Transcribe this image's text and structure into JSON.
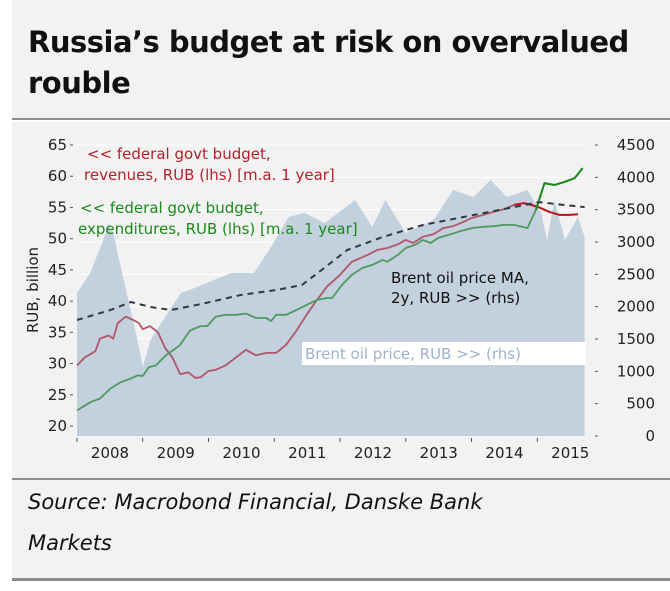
{
  "header": {
    "title": "Russia’s budget at risk on overvalued rouble"
  },
  "footer": {
    "source_line1": "Source: Macrobond Financial, Danske Bank",
    "source_line2": "Markets"
  },
  "colors": {
    "revenues": "#b0566a",
    "revenues_recent": "#c0141e",
    "expenditures": "#4e9a5e",
    "expenditures_recent": "#1a8a1a",
    "brent_area": "#c3d0de",
    "brent_ma": "#333840",
    "grid": "#ffffff",
    "background": "#f2f2f2"
  },
  "chart_data": {
    "type": "line",
    "title": "Russia’s budget at risk on overvalued rouble",
    "ylabel": "RUB, billion",
    "y2label": "",
    "xlabel": "",
    "xlim": [
      2008.0,
      2015.65
    ],
    "ylim": [
      20,
      65
    ],
    "y2lim": [
      0,
      4500
    ],
    "yticks": [
      20,
      25,
      30,
      35,
      40,
      45,
      50,
      55,
      60,
      65
    ],
    "y2ticks": [
      0,
      500,
      1000,
      1500,
      2000,
      2500,
      3000,
      3500,
      4000,
      4500
    ],
    "xticks": [
      2008,
      2009,
      2010,
      2011,
      2012,
      2013,
      2014,
      2015
    ],
    "xtick_labels": [
      "2008",
      "2009",
      "2010",
      "2011",
      "2012",
      "2013",
      "2014",
      "2015"
    ],
    "grid": true,
    "annotations": {
      "revenues_line1": "<< federal govt budget,",
      "revenues_line2": "revenues, RUB (lhs) [m.a. 1 year]",
      "expenditures_line1": "<< federal govt budget,",
      "expenditures_line2": "expenditures, RUB (lhs) [m.a. 1 year]",
      "brent_ma_line1": "Brent oil price MA,",
      "brent_ma_line2": "2y, RUB >> (rhs)",
      "brent_label": "Brent oil price, RUB >> (rhs)"
    },
    "series": [
      {
        "name": "federal govt budget, revenues, RUB (lhs) [m.a. 1 year]",
        "axis": "left",
        "style": "line",
        "x": [
          2008.0,
          2008.12,
          2008.28,
          2008.35,
          2008.48,
          2008.55,
          2008.62,
          2008.74,
          2008.85,
          2008.94,
          2009.0,
          2009.11,
          2009.23,
          2009.34,
          2009.45,
          2009.57,
          2009.69,
          2009.8,
          2009.88,
          2010.0,
          2010.11,
          2010.26,
          2010.42,
          2010.57,
          2010.72,
          2010.88,
          2011.03,
          2011.18,
          2011.34,
          2011.49,
          2011.65,
          2011.8,
          2012.0,
          2012.18,
          2012.42,
          2012.57,
          2012.72,
          2012.88,
          2013.0,
          2013.11,
          2013.26,
          2013.42,
          2013.57,
          2013.72,
          2013.88,
          2014.0,
          2014.18,
          2014.34,
          2014.49,
          2014.65,
          2014.8,
          2014.91,
          2015.03,
          2015.18,
          2015.34,
          2015.49,
          2015.62
        ],
        "values": [
          29.7,
          31.0,
          32.0,
          34.0,
          34.5,
          34.0,
          36.5,
          37.5,
          37.0,
          36.5,
          35.5,
          36.0,
          35.0,
          32.5,
          31.0,
          28.3,
          28.6,
          27.7,
          27.8,
          28.8,
          29.0,
          29.7,
          31.0,
          32.2,
          31.3,
          31.7,
          31.7,
          33.0,
          35.3,
          37.8,
          40.2,
          42.3,
          44.2,
          46.3,
          47.4,
          48.2,
          48.5,
          49.1,
          49.8,
          49.3,
          50.3,
          50.7,
          51.7,
          52.0,
          52.7,
          53.3,
          53.8,
          54.3,
          54.7,
          55.4,
          55.7,
          55.4,
          55.0,
          54.3,
          53.8,
          53.8,
          53.9
        ]
      },
      {
        "name": "federal govt budget, expenditures, RUB (lhs) [m.a. 1 year]",
        "axis": "left",
        "style": "line",
        "x": [
          2008.0,
          2008.2,
          2008.35,
          2008.51,
          2008.66,
          2008.82,
          2008.92,
          2009.0,
          2009.09,
          2009.2,
          2009.35,
          2009.46,
          2009.57,
          2009.72,
          2009.88,
          2009.98,
          2010.11,
          2010.26,
          2010.42,
          2010.57,
          2010.72,
          2010.88,
          2010.95,
          2011.03,
          2011.18,
          2011.34,
          2011.49,
          2011.65,
          2011.8,
          2011.88,
          2012.03,
          2012.18,
          2012.34,
          2012.49,
          2012.65,
          2012.72,
          2012.88,
          2013.0,
          2013.14,
          2013.26,
          2013.38,
          2013.49,
          2013.65,
          2013.8,
          2014.0,
          2014.18,
          2014.34,
          2014.49,
          2014.65,
          2014.85,
          2014.98,
          2015.11,
          2015.26,
          2015.42,
          2015.57,
          2015.69
        ],
        "values": [
          22.5,
          23.8,
          24.4,
          26.0,
          27.0,
          27.6,
          28.1,
          28.0,
          29.4,
          29.7,
          31.3,
          32.1,
          33.0,
          35.3,
          36.0,
          36.0,
          37.5,
          37.8,
          37.8,
          38.0,
          37.3,
          37.3,
          36.8,
          37.8,
          37.8,
          38.6,
          39.4,
          40.2,
          40.5,
          40.5,
          42.6,
          44.2,
          45.3,
          45.8,
          46.6,
          46.3,
          47.4,
          48.5,
          49.0,
          49.8,
          49.3,
          50.1,
          50.6,
          51.1,
          51.7,
          51.9,
          52.0,
          52.2,
          52.2,
          51.7,
          54.6,
          58.9,
          58.6,
          59.1,
          59.7,
          61.3
        ]
      },
      {
        "name": "Brent oil price MA, 2y, RUB >> (rhs)",
        "axis": "right",
        "style": "dashed",
        "x": [
          2008.0,
          2008.51,
          2008.82,
          2009.12,
          2009.43,
          2009.89,
          2010.49,
          2011.03,
          2011.42,
          2011.72,
          2012.11,
          2012.65,
          2013.26,
          2014.03,
          2014.65,
          2015.03,
          2015.42,
          2015.72
        ],
        "values": [
          1794,
          1948,
          2072,
          1995,
          1948,
          2041,
          2180,
          2258,
          2335,
          2567,
          2876,
          3077,
          3263,
          3418,
          3540,
          3617,
          3570,
          3540
        ]
      },
      {
        "name": "Brent oil price, RUB >> (rhs)",
        "axis": "right",
        "style": "area",
        "x": [
          2008.0,
          2008.2,
          2008.4,
          2008.48,
          2008.55,
          2008.71,
          2008.92,
          2009.0,
          2009.12,
          2009.38,
          2009.58,
          2009.83,
          2010.08,
          2010.34,
          2010.69,
          2010.95,
          2011.22,
          2011.46,
          2011.77,
          2012.23,
          2012.49,
          2012.69,
          2013.0,
          2013.42,
          2013.72,
          2014.03,
          2014.29,
          2014.54,
          2014.85,
          2015.06,
          2015.15,
          2015.26,
          2015.42,
          2015.62,
          2015.72
        ],
        "values": [
          2211,
          2520,
          3031,
          3294,
          3139,
          2412,
          1485,
          1067,
          1485,
          1902,
          2211,
          2304,
          2412,
          2520,
          2520,
          2922,
          3387,
          3449,
          3294,
          3649,
          3232,
          3649,
          3139,
          3340,
          3804,
          3696,
          3959,
          3696,
          3804,
          3449,
          3031,
          3649,
          3031,
          3387,
          3077
        ]
      }
    ]
  }
}
